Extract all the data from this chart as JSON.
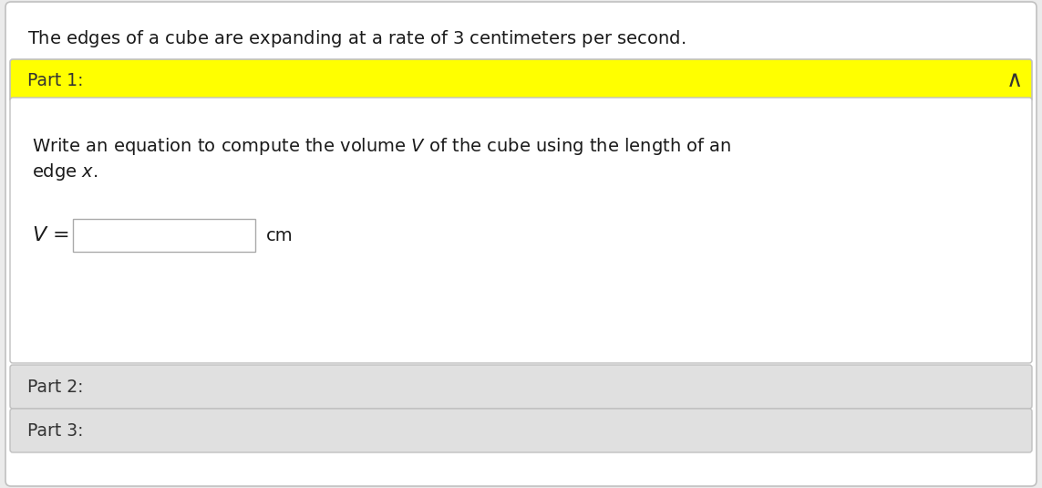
{
  "title_text_plain": "The edges of a cube are expanding at a rate of ",
  "title_number": "3",
  "title_text_after": " centimeters per second.",
  "title_fontsize": 14,
  "part1_label": "Part 1:",
  "part1_bg": "#ffff00",
  "part1_text_color": "#333333",
  "part1_fontsize": 13.5,
  "caret_symbol": "∧",
  "instruction_line1": "Write an equation to compute the volume $V$ of the cube using the length of an",
  "instruction_line2": "edge $x$.",
  "equation_label": "$V$ =",
  "unit_label": "cm",
  "part2_label": "Part 2:",
  "part3_label": "Part 3:",
  "outer_bg": "#ebebeb",
  "card_bg": "#ffffff",
  "part23_bg": "#e0e0e0",
  "border_color": "#c0c0c0",
  "text_color": "#1a1a1a",
  "input_box_color": "#ffffff",
  "input_box_border": "#aaaaaa",
  "part23_text_color": "#333333",
  "body_fontsize": 14,
  "part23_fontsize": 13.5,
  "fig_width": 11.43,
  "fig_height": 5.35,
  "dpi": 100
}
